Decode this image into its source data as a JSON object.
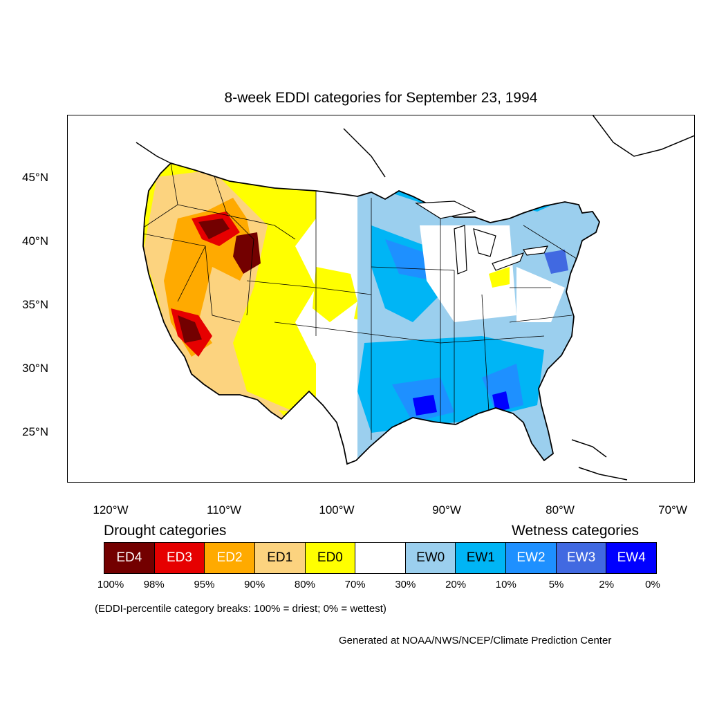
{
  "title": "8-week EDDI categories for September 23, 1994",
  "lat_labels": [
    "45°N",
    "40°N",
    "35°N",
    "30°N",
    "25°N"
  ],
  "lon_labels": [
    "120°W",
    "110°W",
    "100°W",
    "90°W",
    "80°W",
    "70°W"
  ],
  "legend": {
    "drought_title": "Drought categories",
    "wetness_title": "Wetness categories",
    "categories": [
      {
        "label": "ED4",
        "color": "#730000",
        "text_color": "#ffffff"
      },
      {
        "label": "ED3",
        "color": "#e60000",
        "text_color": "#ffffff"
      },
      {
        "label": "ED2",
        "color": "#ffaa00",
        "text_color": "#ffffff"
      },
      {
        "label": "ED1",
        "color": "#fcd37f",
        "text_color": "#000000"
      },
      {
        "label": "ED0",
        "color": "#ffff00",
        "text_color": "#000000"
      },
      {
        "label": "",
        "color": "#ffffff",
        "text_color": "#000000"
      },
      {
        "label": "EW0",
        "color": "#9bcfee",
        "text_color": "#000000"
      },
      {
        "label": "EW1",
        "color": "#00b5f5",
        "text_color": "#000000"
      },
      {
        "label": "EW2",
        "color": "#1e90ff",
        "text_color": "#ffffff"
      },
      {
        "label": "EW3",
        "color": "#4169e1",
        "text_color": "#ffffff"
      },
      {
        "label": "EW4",
        "color": "#0000ff",
        "text_color": "#ffffff"
      }
    ],
    "breaks": [
      "100%",
      "98%",
      "95%",
      "90%",
      "80%",
      "70%",
      "30%",
      "20%",
      "10%",
      "5%",
      "2%",
      "0%"
    ]
  },
  "breaks_note": "(EDDI-percentile category breaks: 100% = driest; 0% = wettest)",
  "credit": "Generated at NOAA/NWS/NCEP/Climate Prediction Center"
}
